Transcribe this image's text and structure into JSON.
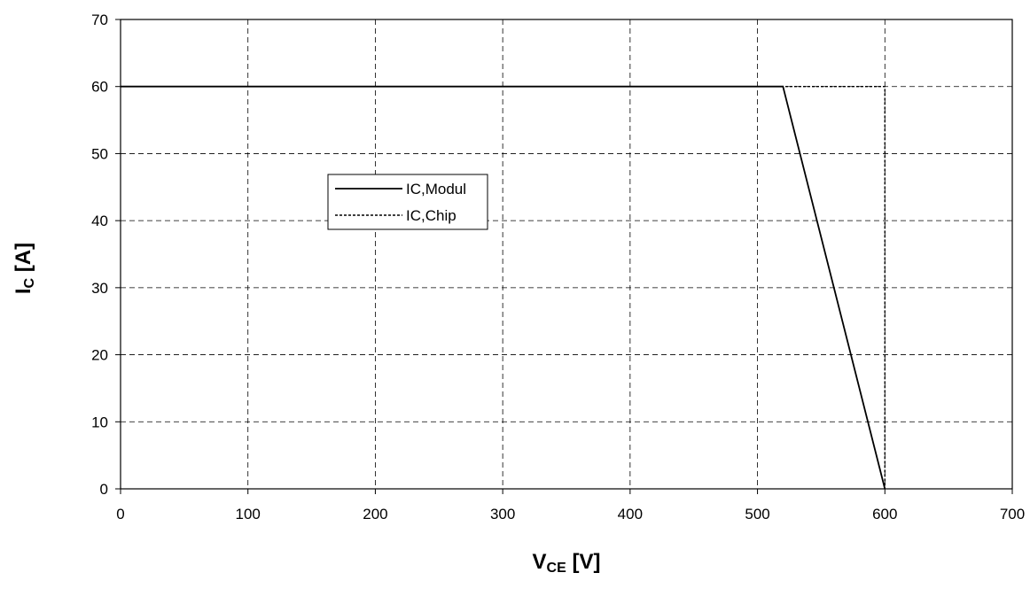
{
  "chart_data": {
    "type": "line",
    "xlabel": {
      "main": "V",
      "sub": "CE",
      "unit": " [V]"
    },
    "ylabel": {
      "main": "I",
      "sub": "C",
      "unit": " [A]"
    },
    "xlim": [
      0,
      700
    ],
    "ylim": [
      0,
      70
    ],
    "xticks": [
      "0",
      "100",
      "200",
      "300",
      "400",
      "500",
      "600",
      "700"
    ],
    "yticks": [
      "0",
      "10",
      "20",
      "30",
      "40",
      "50",
      "60",
      "70"
    ],
    "grid": true,
    "legend_position": "center-left",
    "series": [
      {
        "name": "IC,Modul",
        "style": "solid",
        "color": "#000000",
        "points": [
          [
            0,
            60
          ],
          [
            520,
            60
          ],
          [
            600,
            0
          ]
        ]
      },
      {
        "name": "IC,Chip",
        "style": "dotted",
        "color": "#000000",
        "points": [
          [
            0,
            60
          ],
          [
            600,
            60
          ],
          [
            600,
            0
          ]
        ]
      }
    ]
  }
}
